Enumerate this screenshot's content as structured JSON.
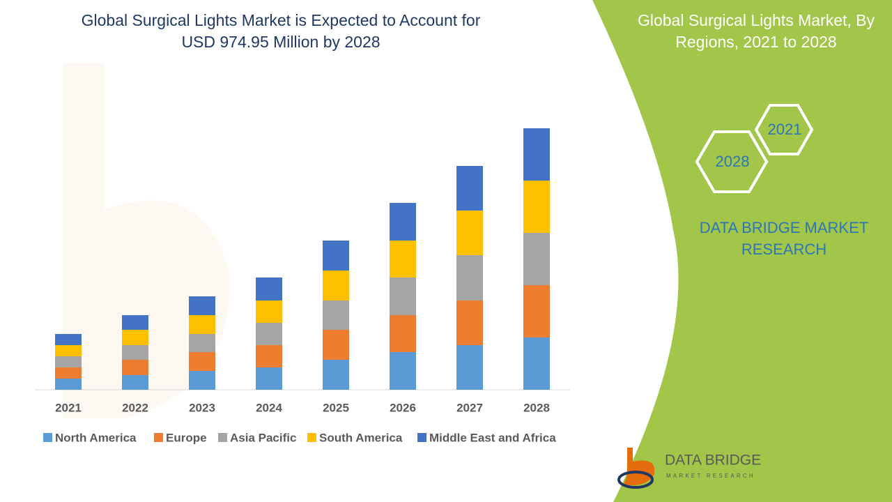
{
  "chart_data": {
    "type": "stacked_bar",
    "title": "Global Surgical Lights Market is Expected to Account for USD 974.95 Million by 2028",
    "categories": [
      "2021",
      "2022",
      "2023",
      "2024",
      "2025",
      "2026",
      "2027",
      "2028"
    ],
    "series": [
      {
        "name": "North America",
        "color": "#5b9bd5",
        "values": [
          16,
          21,
          27,
          32,
          43,
          54,
          64,
          75
        ]
      },
      {
        "name": "Europe",
        "color": "#ed7d31",
        "values": [
          16,
          22,
          27,
          32,
          43,
          53,
          64,
          75
        ]
      },
      {
        "name": "Asia Pacific",
        "color": "#a5a5a5",
        "values": [
          16,
          21,
          26,
          32,
          42,
          54,
          65,
          75
        ]
      },
      {
        "name": "South America",
        "color": "#ffc000",
        "values": [
          16,
          22,
          27,
          32,
          43,
          53,
          64,
          75
        ]
      },
      {
        "name": "Middle East and Africa",
        "color": "#4472c4",
        "values": [
          16,
          21,
          27,
          33,
          43,
          54,
          64,
          75
        ]
      }
    ],
    "ylim": [
      0,
      400
    ]
  },
  "side_panel": {
    "title": "Global Surgical Lights Market, By Regions, 2021 to 2028",
    "hexagon_top": "2021",
    "hexagon_bottom": "2028",
    "brand": "DATA BRIDGE MARKET RESEARCH"
  },
  "logo": {
    "name": "DATA BRIDGE",
    "tagline": "MARKET RESEARCH"
  }
}
